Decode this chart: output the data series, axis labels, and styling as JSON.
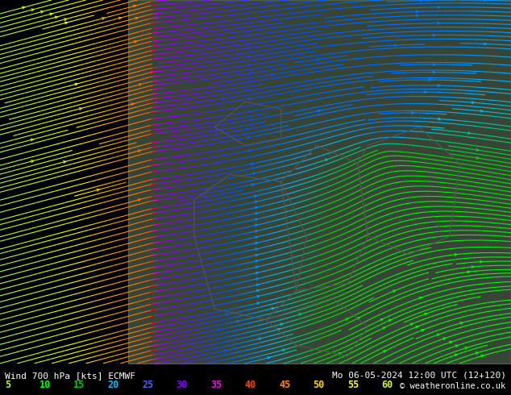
{
  "title_left": "Wind 700 hPa [kts] ECMWF",
  "title_right": "Mo 06-05-2024 12:00 UTC (12+120)",
  "copyright": "© weatheronline.co.uk",
  "legend_values": [
    5,
    10,
    15,
    20,
    25,
    30,
    35,
    40,
    45,
    50,
    55,
    60
  ],
  "legend_colors": [
    "#adff2f",
    "#00ff00",
    "#00e000",
    "#00bfff",
    "#0080ff",
    "#8000ff",
    "#ff00ff",
    "#ff4500",
    "#ff8c00",
    "#ffd700",
    "#ffff00",
    "#c8ff00"
  ],
  "bg_color": "#000000",
  "map_bg": "#c8ffc8",
  "streamline_color_low": "#00aaff",
  "streamline_color_mid": "#00ff88",
  "streamline_color_high": "#ffff00",
  "figsize": [
    6.34,
    4.9
  ],
  "dpi": 100
}
